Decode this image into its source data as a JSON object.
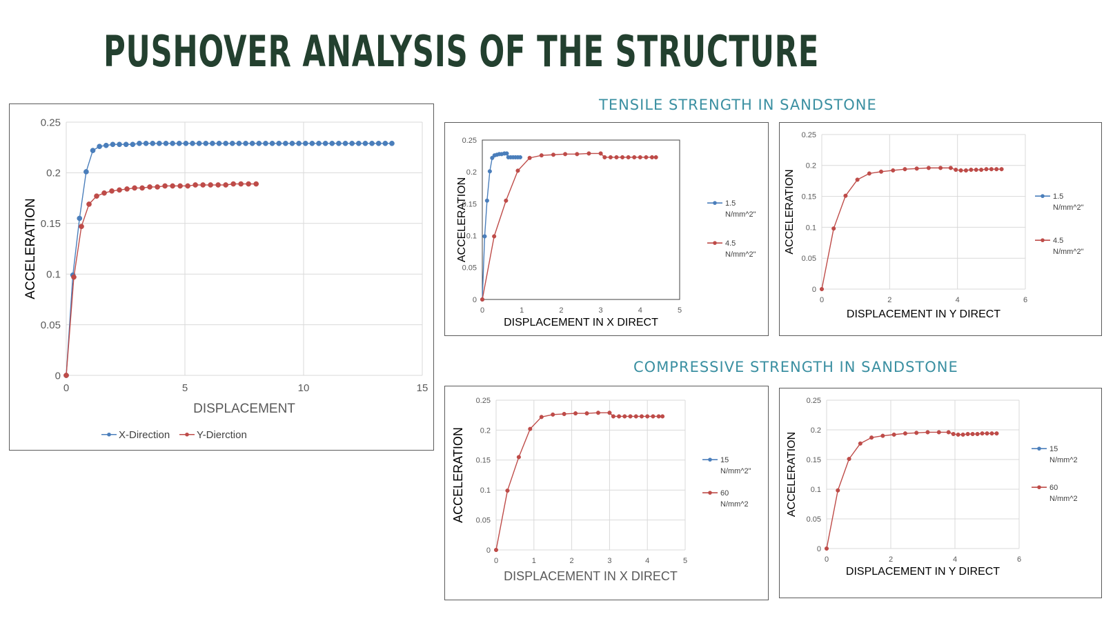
{
  "header": {
    "title": "PUSHOVER ANALYSIS OF THE STRUCTURE",
    "tensile_title": "TENSILE STRENGTH IN SANDSTONE",
    "compressive_title": "COMPRESSIVE  STRENGTH IN SANDSTONE"
  },
  "colors": {
    "blue": "#4a7ebb",
    "red": "#be4b48",
    "title": "#23402f",
    "section": "#3a8fa1"
  },
  "chart_data": [
    {
      "type": "line",
      "xlabel": "DISPLACEMENT",
      "ylabel": "ACCELERATION",
      "xlim": [
        0,
        15
      ],
      "ylim": [
        0,
        0.25
      ],
      "xticks": [
        "0",
        "5",
        "10",
        "15"
      ],
      "yticks": [
        "0",
        "0.05",
        "0.1",
        "0.15",
        "0.2",
        "0.25"
      ],
      "grid": true,
      "legend_position": "bottom",
      "series": [
        {
          "name": "X-Direction",
          "color": "#4a7ebb",
          "x": [
            0,
            0.28,
            0.56,
            0.84,
            1.12,
            1.4,
            1.68,
            1.96,
            2.24,
            2.52,
            2.8,
            3.08,
            3.36,
            3.64,
            3.92,
            4.2,
            4.48,
            4.76,
            5.04,
            5.32,
            5.6,
            5.88,
            6.16,
            6.44,
            6.72,
            7.0,
            7.28,
            7.56,
            7.84,
            8.12,
            8.4,
            8.68,
            8.96,
            9.24,
            9.52,
            9.8,
            10.08,
            10.36,
            10.64,
            10.92,
            11.2,
            11.48,
            11.76,
            12.04,
            12.32,
            12.6,
            12.88,
            13.16,
            13.44,
            13.72
          ],
          "y": [
            0,
            0.099,
            0.155,
            0.201,
            0.222,
            0.226,
            0.227,
            0.228,
            0.228,
            0.228,
            0.228,
            0.229,
            0.229,
            0.229,
            0.229,
            0.229,
            0.229,
            0.229,
            0.229,
            0.229,
            0.229,
            0.229,
            0.229,
            0.229,
            0.229,
            0.229,
            0.229,
            0.229,
            0.229,
            0.229,
            0.229,
            0.229,
            0.229,
            0.229,
            0.229,
            0.229,
            0.229,
            0.229,
            0.229,
            0.229,
            0.229,
            0.229,
            0.229,
            0.229,
            0.229,
            0.229,
            0.229,
            0.229,
            0.229,
            0.229
          ]
        },
        {
          "name": "Y-Dierction",
          "color": "#be4b48",
          "x": [
            0,
            0.32,
            0.64,
            0.96,
            1.28,
            1.6,
            1.92,
            2.24,
            2.56,
            2.88,
            3.2,
            3.52,
            3.84,
            4.16,
            4.48,
            4.8,
            5.12,
            5.44,
            5.76,
            6.08,
            6.4,
            6.72,
            7.04,
            7.36,
            7.68,
            8.0
          ],
          "y": [
            0,
            0.097,
            0.147,
            0.169,
            0.177,
            0.18,
            0.182,
            0.183,
            0.184,
            0.185,
            0.185,
            0.186,
            0.186,
            0.187,
            0.187,
            0.187,
            0.187,
            0.188,
            0.188,
            0.188,
            0.188,
            0.188,
            0.189,
            0.189,
            0.189,
            0.189
          ]
        }
      ]
    },
    {
      "type": "line",
      "xlabel": "DISPLACEMENT IN X DIRECT",
      "ylabel": "ACCELERATION",
      "xlim": [
        0,
        5
      ],
      "ylim": [
        0,
        0.25
      ],
      "xticks": [
        "0",
        "1",
        "2",
        "3",
        "4",
        "5"
      ],
      "yticks": [
        "0",
        "0.05",
        "0.1",
        "0.15",
        "0.2",
        "0.25"
      ],
      "grid": false,
      "legend_position": "right",
      "series": [
        {
          "name": "1.5 N/mm^2\"",
          "color": "#4a7ebb",
          "x": [
            0,
            0.06,
            0.12,
            0.19,
            0.25,
            0.31,
            0.37,
            0.43,
            0.49,
            0.56,
            0.62,
            0.66,
            0.72,
            0.78,
            0.84,
            0.9,
            0.96
          ],
          "y": [
            0,
            0.099,
            0.155,
            0.201,
            0.222,
            0.226,
            0.227,
            0.228,
            0.228,
            0.229,
            0.229,
            0.223,
            0.223,
            0.223,
            0.223,
            0.223,
            0.223
          ]
        },
        {
          "name": "4.5 N/mm^2\"",
          "color": "#be4b48",
          "x": [
            0,
            0.3,
            0.6,
            0.9,
            1.2,
            1.5,
            1.8,
            2.1,
            2.4,
            2.7,
            3.0,
            3.1,
            3.25,
            3.4,
            3.55,
            3.7,
            3.85,
            4.0,
            4.15,
            4.3,
            4.4
          ],
          "y": [
            0,
            0.099,
            0.155,
            0.202,
            0.222,
            0.226,
            0.227,
            0.228,
            0.228,
            0.229,
            0.229,
            0.223,
            0.223,
            0.223,
            0.223,
            0.223,
            0.223,
            0.223,
            0.223,
            0.223,
            0.223
          ]
        }
      ]
    },
    {
      "type": "line",
      "xlabel": "DISPLACEMENT IN Y DIRECT",
      "ylabel": "ACCELERATION",
      "xlim": [
        0,
        6
      ],
      "ylim": [
        0,
        0.25
      ],
      "xticks": [
        "0",
        "2",
        "4",
        "6"
      ],
      "yticks": [
        "0",
        "0.05",
        "0.1",
        "0.15",
        "0.2",
        "0.25"
      ],
      "grid": true,
      "legend_position": "right",
      "series": [
        {
          "name": "1.5 N/mm^2\"",
          "color": "#4a7ebb",
          "x": [],
          "y": []
        },
        {
          "name": "4.5 N/mm^2\"",
          "color": "#be4b48",
          "x": [
            0,
            0.35,
            0.7,
            1.05,
            1.4,
            1.75,
            2.1,
            2.45,
            2.8,
            3.15,
            3.5,
            3.8,
            3.95,
            4.1,
            4.25,
            4.4,
            4.55,
            4.7,
            4.85,
            5.0,
            5.15,
            5.3
          ],
          "y": [
            0,
            0.098,
            0.151,
            0.177,
            0.187,
            0.19,
            0.192,
            0.194,
            0.195,
            0.196,
            0.196,
            0.196,
            0.193,
            0.192,
            0.192,
            0.193,
            0.193,
            0.193,
            0.194,
            0.194,
            0.194,
            0.194
          ]
        }
      ]
    },
    {
      "type": "line",
      "xlabel": "DISPLACEMENT IN X DIRECT",
      "ylabel": "ACCELERATION",
      "xlim": [
        0,
        5
      ],
      "ylim": [
        0,
        0.25
      ],
      "xticks": [
        "0",
        "1",
        "2",
        "3",
        "4",
        "5"
      ],
      "yticks": [
        "0",
        "0.05",
        "0.1",
        "0.15",
        "0.2",
        "0.25"
      ],
      "grid": true,
      "legend_position": "right",
      "series": [
        {
          "name": "15 N/mm^2\"",
          "color": "#4a7ebb",
          "x": [],
          "y": []
        },
        {
          "name": "60 N/mm^2",
          "color": "#be4b48",
          "x": [
            0,
            0.3,
            0.6,
            0.9,
            1.2,
            1.5,
            1.8,
            2.1,
            2.4,
            2.7,
            3.0,
            3.1,
            3.25,
            3.4,
            3.55,
            3.7,
            3.85,
            4.0,
            4.15,
            4.3,
            4.4
          ],
          "y": [
            0,
            0.099,
            0.155,
            0.202,
            0.222,
            0.226,
            0.227,
            0.228,
            0.228,
            0.229,
            0.229,
            0.223,
            0.223,
            0.223,
            0.223,
            0.223,
            0.223,
            0.223,
            0.223,
            0.223,
            0.223
          ]
        }
      ]
    },
    {
      "type": "line",
      "xlabel": "DISPLACEMENT IN Y DIRECT",
      "ylabel": "ACCELERATION",
      "xlim": [
        0,
        6
      ],
      "ylim": [
        0,
        0.25
      ],
      "xticks": [
        "0",
        "2",
        "4",
        "6"
      ],
      "yticks": [
        "0",
        "0.05",
        "0.1",
        "0.15",
        "0.2",
        "0.25"
      ],
      "grid": true,
      "legend_position": "right",
      "series": [
        {
          "name": "15 N/mm^2",
          "color": "#4a7ebb",
          "x": [],
          "y": []
        },
        {
          "name": "60 N/mm^2",
          "color": "#be4b48",
          "x": [
            0,
            0.35,
            0.7,
            1.05,
            1.4,
            1.75,
            2.1,
            2.45,
            2.8,
            3.15,
            3.5,
            3.8,
            3.95,
            4.1,
            4.25,
            4.4,
            4.55,
            4.7,
            4.85,
            5.0,
            5.15,
            5.3
          ],
          "y": [
            0,
            0.098,
            0.151,
            0.177,
            0.187,
            0.19,
            0.192,
            0.194,
            0.195,
            0.196,
            0.196,
            0.196,
            0.193,
            0.192,
            0.192,
            0.193,
            0.193,
            0.193,
            0.194,
            0.194,
            0.194,
            0.194
          ]
        }
      ]
    }
  ]
}
